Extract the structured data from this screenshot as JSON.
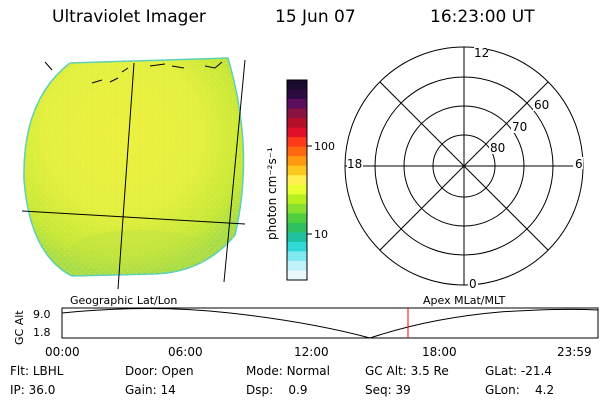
{
  "header": {
    "instrument": "Ultraviolet Imager",
    "date": "15 Jun 07",
    "time": "16:23:00 UT"
  },
  "colorbar": {
    "label": "photon cm⁻²s⁻¹",
    "ticks": [
      {
        "value": 100,
        "label": "100"
      },
      {
        "value": 10,
        "label": "10"
      }
    ],
    "colors": [
      "#1a0a2e",
      "#2d0b40",
      "#5a0f5c",
      "#8a1240",
      "#b5102a",
      "#e0102a",
      "#ff3a1a",
      "#ff6a10",
      "#ff9a10",
      "#ffc820",
      "#ffee50",
      "#e8ff30",
      "#b8f020",
      "#88e030",
      "#50d040",
      "#30c060",
      "#20c0a0",
      "#30d8d8",
      "#80e8f0",
      "#c0f0f8",
      "#e8f8fc"
    ]
  },
  "polar": {
    "mlt_labels": {
      "top": "12",
      "left": "18",
      "right": "6",
      "bottom": "0"
    },
    "lat_labels": [
      "60",
      "70",
      "80"
    ]
  },
  "timeline": {
    "y_axis_label": "GC Alt",
    "y_ticks": [
      "9.0",
      "1.8"
    ],
    "left_label": "Geographic Lat/Lon",
    "right_label": "Apex MLat/MLT",
    "x_ticks": [
      "00:00",
      "06:00",
      "12:00",
      "18:00",
      "23:59"
    ],
    "current_marker_color": "#ff0000"
  },
  "info_rows": [
    [
      {
        "label": "Flt:",
        "value": "LBHL"
      },
      {
        "label": "Door:",
        "value": "Open"
      },
      {
        "label": "Mode:",
        "value": "Normal"
      },
      {
        "label": "GC Alt:",
        "value": "3.5 Re"
      },
      {
        "label": "GLat:",
        "value": "-21.4"
      }
    ],
    [
      {
        "label": "IP:",
        "value": "36.0"
      },
      {
        "label": "Gain:",
        "value": "14"
      },
      {
        "label": "Dsp:",
        "value": "0.9"
      },
      {
        "label": "Seq:",
        "value": "39"
      },
      {
        "label": "GLon:",
        "value": "4.2"
      }
    ]
  ]
}
